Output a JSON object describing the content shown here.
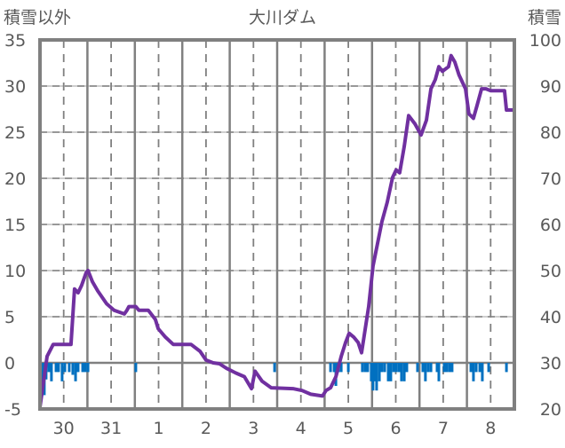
{
  "chart_data": {
    "type": "line",
    "title": "大川ダム",
    "ylabel_left": "積雪以外",
    "ylabel_right": "積雪",
    "x_unit": "hours from start of day 30",
    "xlim": [
      0,
      240
    ],
    "ylim_left": [
      -5,
      35
    ],
    "ylim_right": [
      20,
      100
    ],
    "yticks_left": [
      "35",
      "30",
      "25",
      "20",
      "15",
      "10",
      "5",
      "0",
      "-5"
    ],
    "yticks_right": [
      "100",
      "90",
      "80",
      "70",
      "60",
      "50",
      "40",
      "30",
      "20"
    ],
    "xtick_labels": [
      "30",
      "31",
      "1",
      "2",
      "3",
      "4",
      "5",
      "6",
      "7",
      "8"
    ],
    "grid": true,
    "colors": {
      "line": "#7030A0",
      "bars": "#0070C0",
      "frame": "#808080",
      "grid": "#BFBFBF"
    },
    "series": [
      {
        "name": "積雪",
        "axis": "right-mapped",
        "type": "line",
        "points": [
          [
            0,
            -4.8
          ],
          [
            3.6,
            0.7
          ],
          [
            6.7,
            2.0
          ],
          [
            15.7,
            2.0
          ],
          [
            17.5,
            8.0
          ],
          [
            19.3,
            7.6
          ],
          [
            21.1,
            8.4
          ],
          [
            23.4,
            9.8
          ],
          [
            24.3,
            10.0
          ],
          [
            26.5,
            8.8
          ],
          [
            29.2,
            7.8
          ],
          [
            33.7,
            6.4
          ],
          [
            37.5,
            5.7
          ],
          [
            42.7,
            5.3
          ],
          [
            44,
            5.7
          ],
          [
            45,
            6.1
          ],
          [
            48.5,
            6.1
          ],
          [
            50,
            5.7
          ],
          [
            54.8,
            5.7
          ],
          [
            58.4,
            4.7
          ],
          [
            59.8,
            3.7
          ],
          [
            63.4,
            2.8
          ],
          [
            67.4,
            2.0
          ],
          [
            76.4,
            2.0
          ],
          [
            81,
            1.25
          ],
          [
            84,
            0.3
          ],
          [
            87.6,
            0
          ],
          [
            90.8,
            -0.1
          ],
          [
            94.4,
            -0.6
          ],
          [
            99,
            -1.1
          ],
          [
            103.4,
            -1.5
          ],
          [
            107,
            -2.8
          ],
          [
            108.8,
            -0.9
          ],
          [
            112.4,
            -2.0
          ],
          [
            117,
            -2.7
          ],
          [
            128,
            -2.8
          ],
          [
            132.6,
            -3.0
          ],
          [
            137,
            -3.4
          ],
          [
            142.9,
            -3.6
          ],
          [
            144.7,
            -3.0
          ],
          [
            147,
            -2.7
          ],
          [
            149.7,
            -1.5
          ],
          [
            152.4,
            0.7
          ],
          [
            154.6,
            2.2
          ],
          [
            156.4,
            3.2
          ],
          [
            158.7,
            2.8
          ],
          [
            161,
            2.2
          ],
          [
            162.7,
            1.1
          ],
          [
            166.3,
            6.1
          ],
          [
            168.5,
            10.5
          ],
          [
            173,
            15.3
          ],
          [
            175.7,
            17.4
          ],
          [
            178.4,
            20.1
          ],
          [
            180.2,
            20.9
          ],
          [
            182,
            20.6
          ],
          [
            184.3,
            23.5
          ],
          [
            186.5,
            26.8
          ],
          [
            189.7,
            25.9
          ],
          [
            192.8,
            24.7
          ],
          [
            195.5,
            26.3
          ],
          [
            197.8,
            29.7
          ],
          [
            200,
            30.7
          ],
          [
            201.8,
            32.1
          ],
          [
            203.6,
            31.6
          ],
          [
            206.7,
            32.1
          ],
          [
            208,
            33.3
          ],
          [
            209.9,
            32.6
          ],
          [
            212,
            31.2
          ],
          [
            215.3,
            29.7
          ],
          [
            217,
            27.0
          ],
          [
            219.3,
            26.5
          ],
          [
            221,
            27.8
          ],
          [
            223.4,
            29.7
          ],
          [
            225.6,
            29.7
          ],
          [
            227.9,
            29.5
          ],
          [
            235,
            29.5
          ],
          [
            236,
            27.4
          ],
          [
            240,
            27.4
          ]
        ]
      },
      {
        "name": "積雪以外",
        "type": "bar",
        "points": [
          [
            1.3,
            -2.9
          ],
          [
            2.2,
            -3.5
          ],
          [
            3.1,
            -1.8
          ],
          [
            4.5,
            -1
          ],
          [
            5.8,
            -2
          ],
          [
            8.1,
            -1
          ],
          [
            9.4,
            -1
          ],
          [
            11.2,
            -2
          ],
          [
            12.6,
            -1
          ],
          [
            14.8,
            -1
          ],
          [
            16.6,
            -1.3
          ],
          [
            18,
            -2
          ],
          [
            19.3,
            -1
          ],
          [
            21.6,
            -1
          ],
          [
            22.9,
            -1
          ],
          [
            24.3,
            -1
          ],
          [
            48.5,
            -1
          ],
          [
            118.7,
            -1
          ],
          [
            147,
            -1
          ],
          [
            148.8,
            -1
          ],
          [
            149.7,
            -2.5
          ],
          [
            151,
            -1
          ],
          [
            152.4,
            -1
          ],
          [
            156,
            -1
          ],
          [
            163.1,
            -1
          ],
          [
            164.5,
            -1
          ],
          [
            165.8,
            -1
          ],
          [
            167.6,
            -2
          ],
          [
            168.5,
            -3
          ],
          [
            169.4,
            -2
          ],
          [
            170.3,
            -3
          ],
          [
            171.7,
            -2
          ],
          [
            173,
            -1
          ],
          [
            174.4,
            -1
          ],
          [
            176.2,
            -2
          ],
          [
            177.5,
            -2
          ],
          [
            178.9,
            -1
          ],
          [
            180.2,
            -1
          ],
          [
            181.6,
            -1
          ],
          [
            182.9,
            -2
          ],
          [
            184.3,
            -2
          ],
          [
            185.6,
            -1
          ],
          [
            191,
            -1
          ],
          [
            193.7,
            -1
          ],
          [
            195,
            -2
          ],
          [
            196.4,
            -1
          ],
          [
            197.8,
            -1
          ],
          [
            200.9,
            -1
          ],
          [
            201.8,
            -2
          ],
          [
            204.5,
            -1
          ],
          [
            205.8,
            -1
          ],
          [
            207.2,
            -1
          ],
          [
            208.5,
            -1
          ],
          [
            218,
            -1
          ],
          [
            219.3,
            -2
          ],
          [
            220.7,
            -1
          ],
          [
            222.5,
            -1
          ],
          [
            223.8,
            -2
          ],
          [
            227,
            -1
          ],
          [
            236,
            -1
          ]
        ]
      }
    ]
  }
}
